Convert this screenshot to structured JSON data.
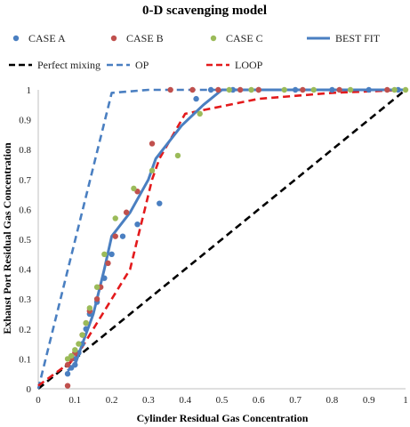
{
  "chart_data": {
    "type": "scatter",
    "title": "0-D scavenging model",
    "xlabel": "Cylinder  Residual Gas Concentration",
    "ylabel": "Exhaust  Port Residual Gas Concentration",
    "xlim": [
      0,
      1
    ],
    "ylim": [
      0,
      1
    ],
    "xticks": [
      "0",
      "0.1",
      "0.2",
      "0.3",
      "0.4",
      "0.5",
      "0.6",
      "0.7",
      "0.8",
      "0.9",
      "1"
    ],
    "yticks": [
      "0",
      "0.1",
      "0.2",
      "0.3",
      "0.4",
      "0.5",
      "0.6",
      "0.7",
      "0.8",
      "0.9",
      "1"
    ],
    "grid": false,
    "legend_position": "top",
    "series": [
      {
        "name": "CASE A",
        "kind": "scatter",
        "color": "#4a7fc1",
        "points": [
          [
            0.08,
            0.05
          ],
          [
            0.09,
            0.07
          ],
          [
            0.1,
            0.08
          ],
          [
            0.1,
            0.1
          ],
          [
            0.11,
            0.12
          ],
          [
            0.12,
            0.15
          ],
          [
            0.13,
            0.2
          ],
          [
            0.14,
            0.25
          ],
          [
            0.16,
            0.29
          ],
          [
            0.18,
            0.37
          ],
          [
            0.2,
            0.45
          ],
          [
            0.23,
            0.51
          ],
          [
            0.27,
            0.55
          ],
          [
            0.33,
            0.62
          ],
          [
            0.43,
            0.97
          ],
          [
            0.47,
            1.0
          ],
          [
            0.53,
            1.0
          ],
          [
            0.6,
            1.0
          ],
          [
            0.7,
            1.0
          ],
          [
            0.8,
            1.0
          ],
          [
            0.9,
            1.0
          ],
          [
            0.98,
            1.0
          ]
        ]
      },
      {
        "name": "CASE B",
        "kind": "scatter",
        "color": "#c0504d",
        "points": [
          [
            0.08,
            0.01
          ],
          [
            0.08,
            0.08
          ],
          [
            0.09,
            0.1
          ],
          [
            0.1,
            0.12
          ],
          [
            0.12,
            0.18
          ],
          [
            0.13,
            0.22
          ],
          [
            0.14,
            0.26
          ],
          [
            0.16,
            0.3
          ],
          [
            0.17,
            0.34
          ],
          [
            0.19,
            0.42
          ],
          [
            0.21,
            0.51
          ],
          [
            0.24,
            0.59
          ],
          [
            0.27,
            0.66
          ],
          [
            0.31,
            0.82
          ],
          [
            0.36,
            1.0
          ],
          [
            0.42,
            1.0
          ],
          [
            0.49,
            1.0
          ],
          [
            0.55,
            1.0
          ],
          [
            0.6,
            1.0
          ],
          [
            0.72,
            1.0
          ],
          [
            0.82,
            1.0
          ],
          [
            0.95,
            1.0
          ]
        ]
      },
      {
        "name": "CASE C",
        "kind": "scatter",
        "color": "#9bbb59",
        "points": [
          [
            0.08,
            0.1
          ],
          [
            0.09,
            0.11
          ],
          [
            0.1,
            0.13
          ],
          [
            0.11,
            0.15
          ],
          [
            0.12,
            0.18
          ],
          [
            0.13,
            0.22
          ],
          [
            0.14,
            0.27
          ],
          [
            0.16,
            0.34
          ],
          [
            0.18,
            0.45
          ],
          [
            0.21,
            0.57
          ],
          [
            0.26,
            0.67
          ],
          [
            0.31,
            0.73
          ],
          [
            0.38,
            0.78
          ],
          [
            0.44,
            0.92
          ],
          [
            0.52,
            1.0
          ],
          [
            0.58,
            1.0
          ],
          [
            0.67,
            1.0
          ],
          [
            0.75,
            1.0
          ],
          [
            0.85,
            1.0
          ],
          [
            0.97,
            1.0
          ],
          [
            1.0,
            1.0
          ]
        ]
      },
      {
        "name": "BEST FIT",
        "kind": "line",
        "color": "#4a7fc1",
        "dash": "solid",
        "points": [
          [
            0.08,
            0.06
          ],
          [
            0.1,
            0.08
          ],
          [
            0.12,
            0.15
          ],
          [
            0.15,
            0.25
          ],
          [
            0.18,
            0.4
          ],
          [
            0.2,
            0.51
          ],
          [
            0.25,
            0.59
          ],
          [
            0.3,
            0.7
          ],
          [
            0.32,
            0.77
          ],
          [
            0.39,
            0.88
          ],
          [
            0.45,
            0.95
          ],
          [
            0.5,
            1.0
          ],
          [
            0.6,
            1.0
          ],
          [
            0.8,
            1.0
          ],
          [
            1.0,
            1.0
          ]
        ]
      },
      {
        "name": "Perfect mixing",
        "kind": "line",
        "color": "#000000",
        "dash": "dashed",
        "points": [
          [
            0.0,
            0.0
          ],
          [
            1.0,
            1.0
          ]
        ]
      },
      {
        "name": "OP",
        "kind": "line",
        "color": "#4a7fc1",
        "dash": "dashed",
        "points": [
          [
            0.0,
            0.0
          ],
          [
            0.2,
            0.99
          ],
          [
            0.3,
            1.0
          ],
          [
            1.0,
            1.0
          ]
        ]
      },
      {
        "name": "LOOP",
        "kind": "line",
        "color": "#e31a1c",
        "dash": "dashed",
        "points": [
          [
            0.0,
            0.01
          ],
          [
            0.1,
            0.1
          ],
          [
            0.15,
            0.2
          ],
          [
            0.2,
            0.3
          ],
          [
            0.25,
            0.4
          ],
          [
            0.27,
            0.5
          ],
          [
            0.29,
            0.6
          ],
          [
            0.31,
            0.7
          ],
          [
            0.33,
            0.77
          ],
          [
            0.4,
            0.92
          ],
          [
            0.6,
            0.97
          ],
          [
            0.8,
            0.99
          ],
          [
            1.0,
            1.0
          ]
        ]
      }
    ],
    "legend_rows": [
      [
        "CASE A",
        "CASE B",
        "CASE C",
        "BEST FIT"
      ],
      [
        "Perfect mixing",
        "OP",
        "LOOP"
      ]
    ]
  }
}
